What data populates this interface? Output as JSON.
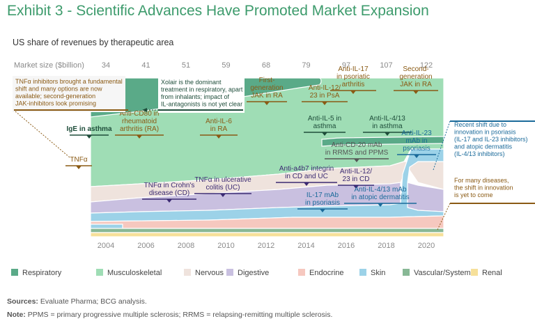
{
  "title": "Exhibit 3 - Scientific Advances Have Promoted Market Expansion",
  "subtitle": "US share of revenues by therapeutic area",
  "chart_data": {
    "type": "area",
    "stacking": "percent",
    "x_ticks": [
      "2004",
      "2006",
      "2008",
      "2010",
      "2012",
      "2014",
      "2016",
      "2018",
      "2020"
    ],
    "market_size_label": "Market size ($billion)",
    "market_size": [
      {
        "year": 2004,
        "value": "34"
      },
      {
        "year": 2006,
        "value": "41"
      },
      {
        "year": 2008,
        "value": "51"
      },
      {
        "year": 2010,
        "value": "59"
      },
      {
        "year": 2012,
        "value": "68"
      },
      {
        "year": 2014,
        "value": "79"
      },
      {
        "year": 2016,
        "value": "97"
      },
      {
        "year": 2018,
        "value": "107"
      },
      {
        "year": 2020,
        "value": "122"
      }
    ],
    "series": [
      {
        "name": "Respiratory",
        "color": "#5aaa88"
      },
      {
        "name": "Musculoskeletal",
        "color": "#9fddb5"
      },
      {
        "name": "Nervous",
        "color": "#efe3dd"
      },
      {
        "name": "Digestive",
        "color": "#c9c0e0"
      },
      {
        "name": "Endocrine",
        "color": "#f6c8bf"
      },
      {
        "name": "Skin",
        "color": "#9cd2e8"
      },
      {
        "name": "Vascular/Systemic",
        "color": "#88b895"
      },
      {
        "name": "Renal",
        "color": "#f6e09a"
      }
    ],
    "annotations": [
      {
        "text": "IgE in asthma",
        "year": 2003.9
      },
      {
        "text": "Anti-CD80 in rheumatoid arthritis (RA)",
        "year": 2006.1
      },
      {
        "text": "Anti-IL-6 in RA",
        "year": 2010.0
      },
      {
        "text": "First-generation JAK in RA",
        "year": 2012.2
      },
      {
        "text": "Anti-IL-12/23 in PsA",
        "year": 2015.0
      },
      {
        "text": "Anti-IL-17 in psoriatic arthritis",
        "year": 2017.0
      },
      {
        "text": "Second-generation JAK in RA",
        "year": 2019.5
      },
      {
        "text": "Anti-IL-5 in asthma",
        "year": 2015.0
      },
      {
        "text": "Anti-IL-4/13 in asthma",
        "year": 2018.0
      },
      {
        "text": "Anti-CD-20 mAb in RRMS and PPMS",
        "year": 2017.5
      },
      {
        "text": "Anti-IL-23 mAb in psoriasis",
        "year": 2019.4
      },
      {
        "text": "TNFα in Crohn's disease (CD)",
        "year": 2008.0
      },
      {
        "text": "TNFα in ulcerative colitis (UC)",
        "year": 2010.5
      },
      {
        "text": "Anti-a4b7 integrin in CD and UC",
        "year": 2014.3
      },
      {
        "text": "Anti-IL-12/23 in CD",
        "year": 2016.8
      },
      {
        "text": "IL-17 mAb in psoriasis",
        "year": 2014.7
      },
      {
        "text": "Anti-IL-4/13 mAb in atopic dermatitis",
        "year": 2017.4
      },
      {
        "text": "TNFα",
        "year": 2003.0
      }
    ],
    "callouts": [
      {
        "text": "TNFα inhibitors brought a fundamental shift and many options are now available; second-generation JAK-inhibitors look promising"
      },
      {
        "text": "Xolair is the dominant treatment in respiratory, apart from inhalants; impact of IL-antagonists is not yet clear"
      },
      {
        "text": "Recent shift due to innovation in psoriasis (IL-17 and IL-23 inhibitors) and atopic dermatitis (IL-4/13 inhibitors)"
      },
      {
        "text": "For many diseases, the shift in innovation is yet to come"
      }
    ]
  },
  "sources": {
    "label": "Sources:",
    "text": "Evaluate Pharma; BCG analysis."
  },
  "note": {
    "label": "Note:",
    "text": "PPMS = primary progressive multiple sclerosis; RRMS = relapsing-remitting multiple sclerosis."
  }
}
